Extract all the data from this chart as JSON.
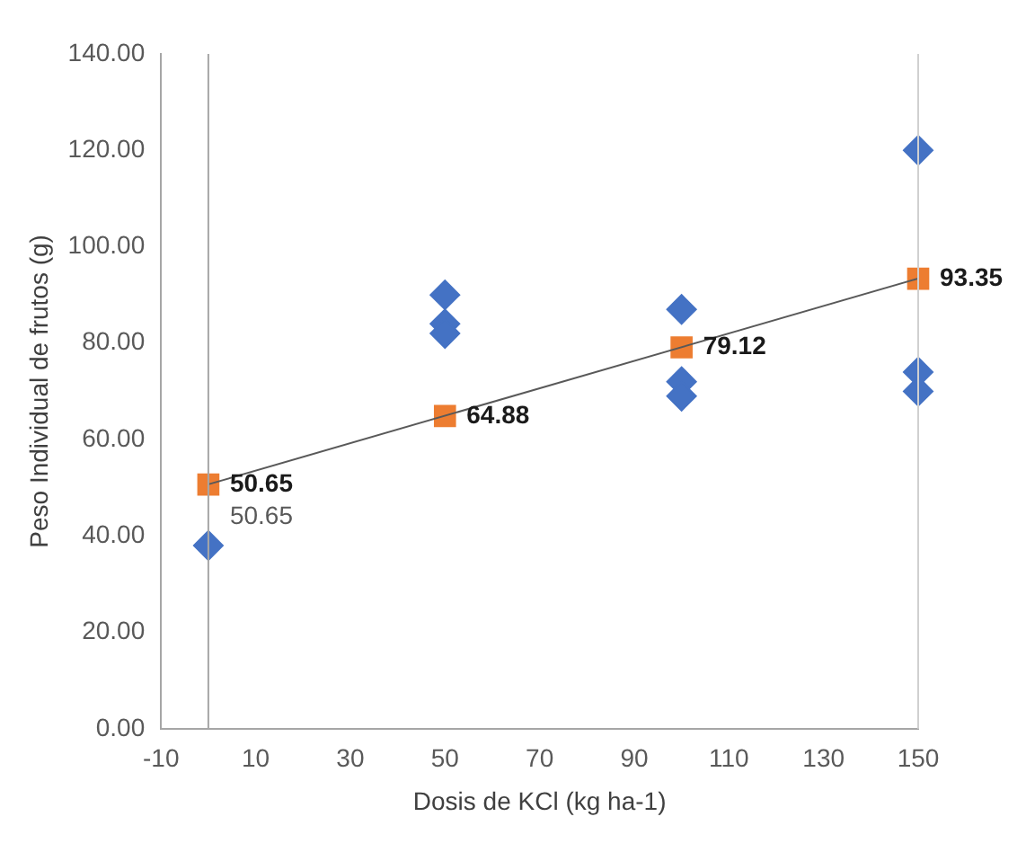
{
  "chart_data": {
    "type": "scatter",
    "xlabel": "Dosis de KCl (kg ha-1)",
    "ylabel": "Peso Individual de frutos (g)",
    "xlim": [
      -10,
      150
    ],
    "xticks": [
      -10,
      10,
      30,
      50,
      70,
      90,
      110,
      130,
      150
    ],
    "ylim": [
      0,
      140
    ],
    "yticks": [
      {
        "value": 0,
        "label": "0.00"
      },
      {
        "value": 20,
        "label": "20.00"
      },
      {
        "value": 40,
        "label": "40.00"
      },
      {
        "value": 60,
        "label": "60.00"
      },
      {
        "value": 80,
        "label": "80.00"
      },
      {
        "value": 100,
        "label": "100.00"
      },
      {
        "value": 120,
        "label": "120.00"
      },
      {
        "value": 140,
        "label": "140.00"
      }
    ],
    "grid": false,
    "legend": false,
    "ref_lines": [
      {
        "axis": "x",
        "value": 0,
        "color": "#a6a6a6"
      },
      {
        "axis": "x",
        "value": 150,
        "color": "#d0d0d0"
      }
    ],
    "series": [
      {
        "marker": "diamond",
        "color": "#4472c4",
        "x": [
          0,
          50,
          50,
          50,
          100,
          100,
          100,
          150,
          150,
          150
        ],
        "values": [
          38,
          90,
          84,
          82,
          87,
          72,
          69,
          120,
          74,
          70
        ]
      },
      {
        "marker": "square",
        "color": "#ed7d31",
        "x": [
          0,
          50,
          100,
          150
        ],
        "values": [
          50.65,
          64.88,
          79.12,
          93.35
        ],
        "value_labels": [
          "50.65",
          "64.88",
          "79.12",
          "93.35"
        ]
      },
      {
        "type": "line",
        "marker": "none",
        "color": "#595959",
        "x": [
          0,
          150
        ],
        "values": [
          50.7,
          93.4
        ]
      }
    ],
    "annotations": [
      {
        "text": "50.65",
        "x": 0,
        "y": 50.65
      }
    ]
  }
}
